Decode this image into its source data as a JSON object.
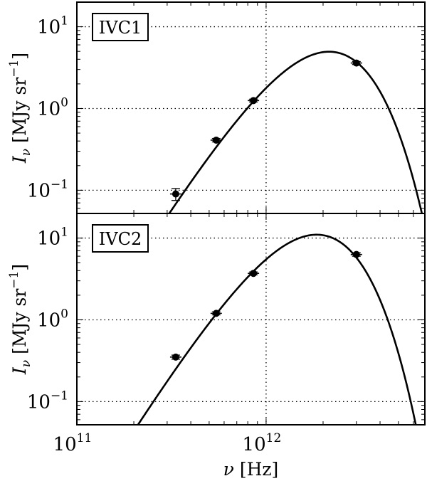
{
  "chart_data": [
    {
      "type": "scatter",
      "label": "IVC1",
      "xlabel": "ν [Hz]",
      "ylabel": "I_ν [MJy sr^-1]",
      "xscale": "log",
      "yscale": "log",
      "xlim": [
        100000000000.0,
        6900000000000.0
      ],
      "ylim": [
        0.052,
        20
      ],
      "grid": true,
      "yticks": [
        {
          "base": "10",
          "exp": "1",
          "value": 10
        },
        {
          "base": "10",
          "exp": "0",
          "value": 1
        },
        {
          "base": "10",
          "exp": "−1",
          "value": 0.1
        }
      ],
      "points": [
        {
          "x": 333000000000.0,
          "y": 0.09,
          "yerr": 0.015
        },
        {
          "x": 545000000000.0,
          "y": 0.41,
          "yerr": 0.02
        },
        {
          "x": 857000000000.0,
          "y": 1.25,
          "yerr": 0.05
        },
        {
          "x": 3000000000000.0,
          "y": 3.6,
          "yerr": 0.15
        }
      ],
      "model": {
        "type": "modified-blackbody",
        "peak_x": 2150000000000.0,
        "peak_y": 4.95,
        "beta": 1.8
      }
    },
    {
      "type": "scatter",
      "label": "IVC2",
      "xlabel": "ν [Hz]",
      "ylabel": "I_ν [MJy sr^-1]",
      "xscale": "log",
      "yscale": "log",
      "xlim": [
        100000000000.0,
        6900000000000.0
      ],
      "ylim": [
        0.052,
        20
      ],
      "grid": true,
      "yticks": [
        {
          "base": "10",
          "exp": "1",
          "value": 10
        },
        {
          "base": "10",
          "exp": "0",
          "value": 1
        },
        {
          "base": "10",
          "exp": "−1",
          "value": 0.1
        }
      ],
      "points": [
        {
          "x": 333000000000.0,
          "y": 0.35,
          "yerr": 0.02
        },
        {
          "x": 545000000000.0,
          "y": 1.2,
          "yerr": 0.05
        },
        {
          "x": 857000000000.0,
          "y": 3.7,
          "yerr": 0.15
        },
        {
          "x": 3000000000000.0,
          "y": 6.3,
          "yerr": 0.3
        }
      ],
      "model": {
        "type": "modified-blackbody",
        "peak_x": 1850000000000.0,
        "peak_y": 11.0,
        "beta": 1.8
      }
    }
  ],
  "xaxis": {
    "label_symbol": "ν",
    "label_unit": " [Hz]",
    "ticks": [
      {
        "base": "10",
        "exp": "11",
        "value": 100000000000.0
      },
      {
        "base": "10",
        "exp": "12",
        "value": 1000000000000.0
      }
    ]
  },
  "yaxis": {
    "label_symbol": "I",
    "label_sub": "ν",
    "label_unit_open": " [MJy sr",
    "label_unit_exp": "−1",
    "label_unit_close": "]"
  }
}
